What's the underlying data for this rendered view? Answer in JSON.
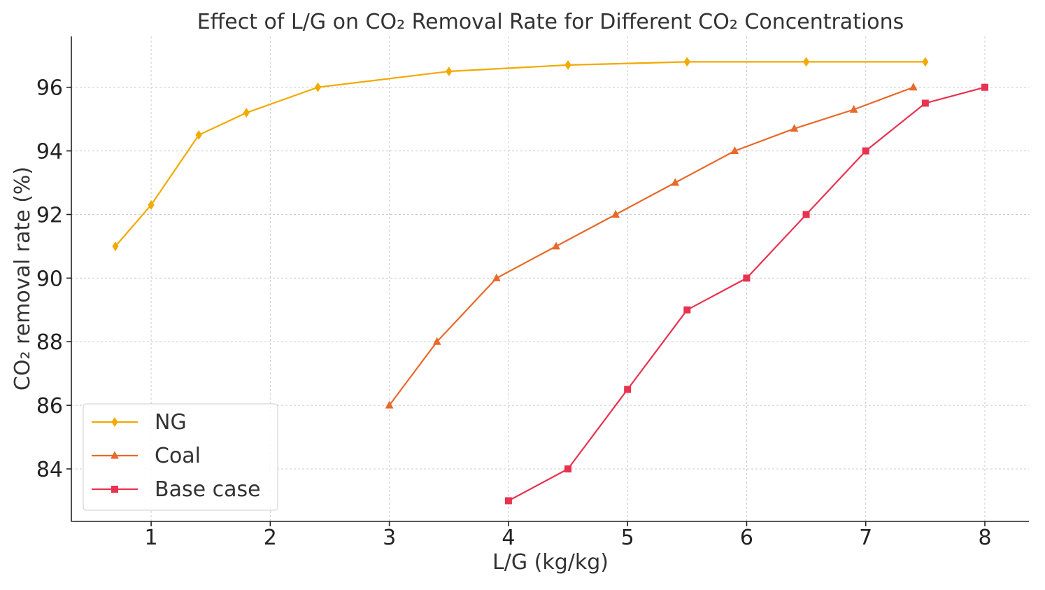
{
  "chart_data": {
    "type": "line",
    "title": "Effect of L/G on CO₂ Removal Rate for Different CO₂ Concentrations",
    "xlabel": "L/G (kg/kg)",
    "ylabel": "CO₂ removal rate (%)",
    "xlim": [
      0.33,
      8.37
    ],
    "ylim": [
      82.35,
      97.6
    ],
    "xticks": [
      1,
      2,
      3,
      4,
      5,
      6,
      7,
      8
    ],
    "yticks": [
      84,
      86,
      88,
      90,
      92,
      94,
      96
    ],
    "grid": true,
    "legend_position": "bottom-left",
    "series": [
      {
        "name": "NG",
        "color": "#f2a900",
        "marker": "diamond",
        "x": [
          0.7,
          1.0,
          1.4,
          1.8,
          2.4,
          3.5,
          4.5,
          5.5,
          6.5,
          7.5
        ],
        "y": [
          91.0,
          92.3,
          94.5,
          95.2,
          96.0,
          96.5,
          96.7,
          96.8,
          96.8,
          96.8
        ]
      },
      {
        "name": "Coal",
        "color": "#e8692a",
        "marker": "triangle",
        "x": [
          3.0,
          3.4,
          3.9,
          4.4,
          4.9,
          5.4,
          5.9,
          6.4,
          6.9,
          7.4
        ],
        "y": [
          86.0,
          88.0,
          90.0,
          91.0,
          92.0,
          93.0,
          94.0,
          94.7,
          95.3,
          96.0
        ]
      },
      {
        "name": "Base case",
        "color": "#e8324f",
        "marker": "square",
        "x": [
          4.0,
          4.5,
          5.0,
          5.5,
          6.0,
          6.5,
          7.0,
          7.5,
          8.0
        ],
        "y": [
          83.0,
          84.0,
          86.5,
          89.0,
          90.0,
          92.0,
          94.0,
          95.5,
          96.0
        ]
      }
    ]
  }
}
